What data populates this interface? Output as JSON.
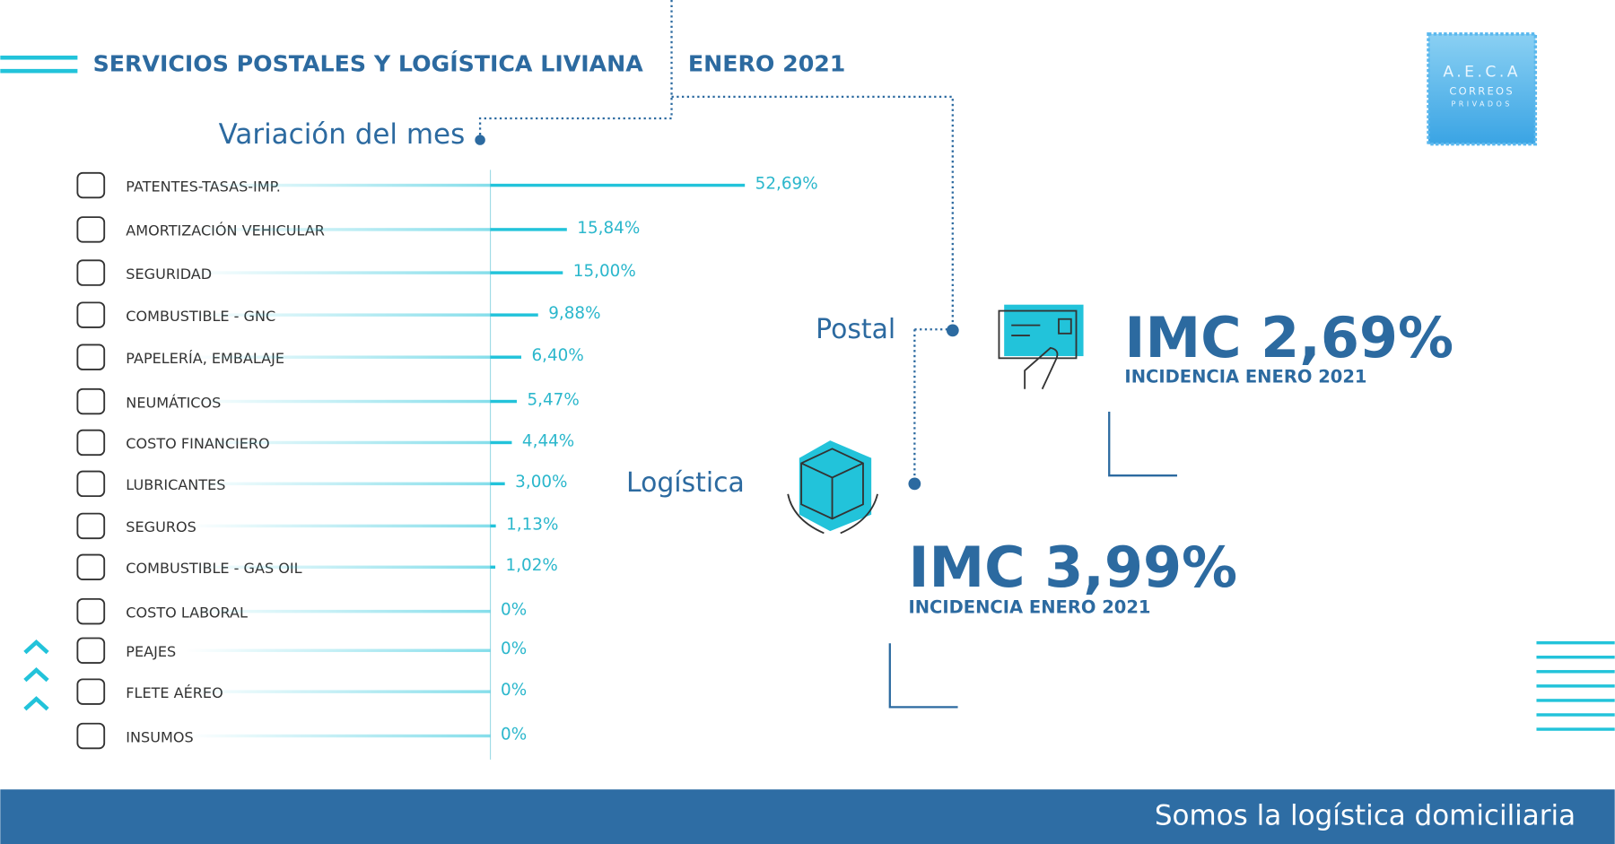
{
  "header": {
    "title": "SERVICIOS POSTALES Y LOGÍSTICA LIVIANA",
    "period": "ENERO 2021"
  },
  "logo": {
    "name": "A.E.C.A",
    "line1": "CORREOS",
    "line2": "PRIVADOS"
  },
  "chart_data": {
    "type": "bar",
    "title": "Variación del mes",
    "categories": [
      "PATENTES-TASAS-IMP.",
      "AMORTIZACIÓN VEHICULAR",
      "SEGURIDAD",
      "COMBUSTIBLE - GNC",
      "PAPELERÍA, EMBALAJE",
      "NEUMÁTICOS",
      "COSTO FINANCIERO",
      "LUBRICANTES",
      "SEGUROS",
      "COMBUSTIBLE - GAS OIL",
      "COSTO LABORAL",
      "PEAJES",
      "FLETE AÉREO",
      "INSUMOS"
    ],
    "values": [
      52.69,
      15.84,
      15.0,
      9.88,
      6.4,
      5.47,
      4.44,
      3.0,
      1.13,
      1.02,
      0,
      0,
      0,
      0
    ],
    "value_labels": [
      "52,69%",
      "15,84%",
      "15,00%",
      "9,88%",
      "6,40%",
      "5,47%",
      "4,44%",
      "3,00%",
      "1,13%",
      "1,02%",
      "0%",
      "0%",
      "0%",
      "0%"
    ],
    "color": "#22c3da",
    "xlim": [
      0,
      55
    ]
  },
  "indices": [
    {
      "label": "Postal",
      "value": "IMC 2,69%",
      "note": "INCIDENCIA ENERO 2021"
    },
    {
      "label": "Logística",
      "value": "IMC 3,99%",
      "note": "INCIDENCIA ENERO 2021"
    }
  ],
  "footer": "Somos la logística domiciliaria"
}
